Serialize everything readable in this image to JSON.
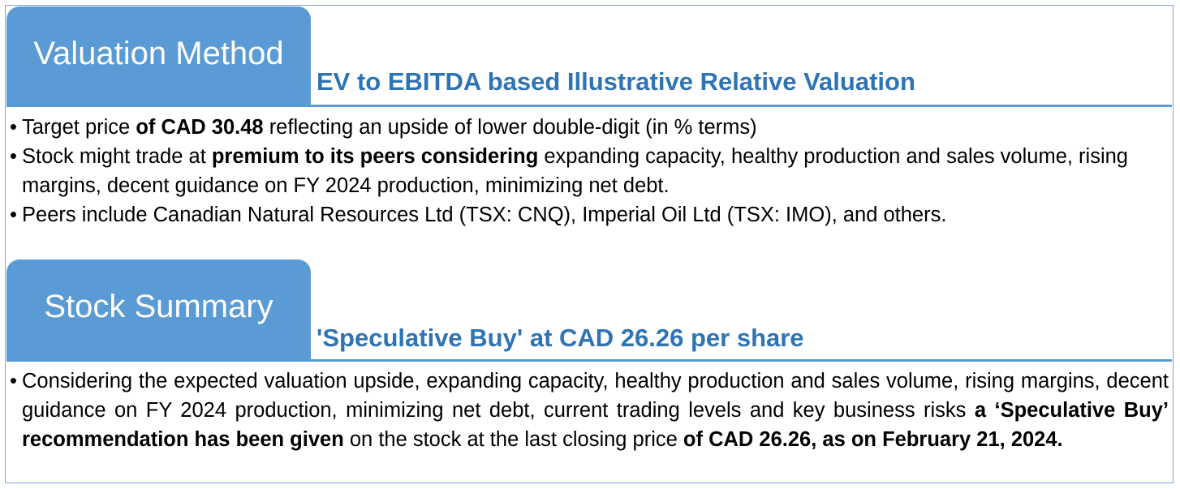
{
  "valuation": {
    "tab_label": "Valuation Method",
    "subtitle": "EV to EBITDA based Illustrative Relative Valuation",
    "bullets": [
      {
        "pre": "Target price ",
        "bold": "of CAD 30.48",
        "post": " reflecting an upside of lower double-digit (in % terms)"
      },
      {
        "pre": "Stock might trade at ",
        "bold": "premium to its peers considering",
        "post": " expanding capacity,  healthy production and sales volume, rising margins, decent guidance on FY 2024 production, minimizing net debt."
      },
      {
        "pre": "Peers include Canadian Natural Resources Ltd (TSX: CNQ), Imperial Oil Ltd (TSX: IMO), and others.",
        "bold": "",
        "post": ""
      }
    ]
  },
  "summary": {
    "tab_label": "Stock Summary",
    "subtitle": "'Speculative Buy' at CAD 26.26 per share",
    "bullet": {
      "pre": "Considering the expected valuation upside, expanding capacity,  healthy production and sales volume, rising margins, decent guidance on FY 2024 production, minimizing net debt, current trading levels and key business risks ",
      "bold1": "a ‘Speculative Buy’ recommendation has been given",
      "mid": " on the stock at the last closing price ",
      "bold2": "of CAD 26.26, as on February 21, 2024."
    }
  },
  "colors": {
    "tab_fill": "#5b9bd5",
    "subtitle_text": "#2e74b5",
    "frame_border": "#7ea6d6"
  },
  "bullet_glyph": "•"
}
